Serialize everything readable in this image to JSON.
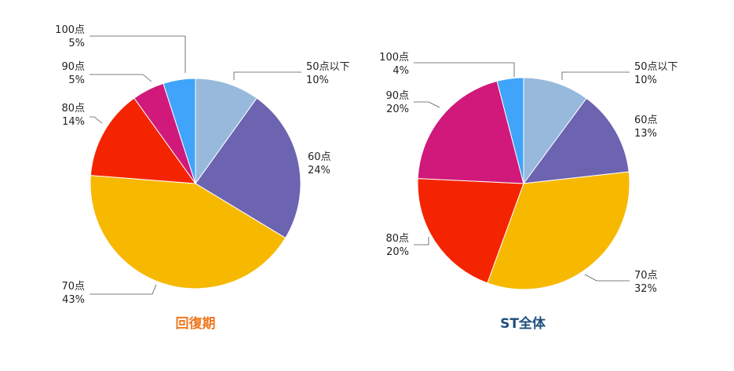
{
  "chart_data": [
    {
      "type": "pie",
      "title": "回復期",
      "title_color": "#F07820",
      "slices": [
        {
          "label": "50点以下",
          "value": 10,
          "display": "10%",
          "color": "#97B9DC"
        },
        {
          "label": "60点",
          "value": 24,
          "display": "24%",
          "color": "#6C64B0"
        },
        {
          "label": "70点",
          "value": 43,
          "display": "43%",
          "color": "#F7B800"
        },
        {
          "label": "80点",
          "value": 14,
          "display": "14%",
          "color": "#F52400"
        },
        {
          "label": "90点",
          "value": 5,
          "display": "5%",
          "color": "#D0197A"
        },
        {
          "label": "100点",
          "value": 5,
          "display": "5%",
          "color": "#3FA4FA"
        }
      ]
    },
    {
      "type": "pie",
      "title": "ST全体",
      "title_color": "#1E4F7C",
      "slices": [
        {
          "label": "50点以下",
          "value": 10,
          "display": "10%",
          "color": "#97B9DC"
        },
        {
          "label": "60点",
          "value": 13,
          "display": "13%",
          "color": "#6C64B0"
        },
        {
          "label": "70点",
          "value": 32,
          "display": "32%",
          "color": "#F7B800"
        },
        {
          "label": "80点",
          "value": 20,
          "display": "20%",
          "color": "#F52400"
        },
        {
          "label": "90点",
          "value": 20,
          "display": "20%",
          "color": "#D0197A"
        },
        {
          "label": "100点",
          "value": 4,
          "display": "4%",
          "color": "#3FA4FA"
        }
      ]
    }
  ]
}
